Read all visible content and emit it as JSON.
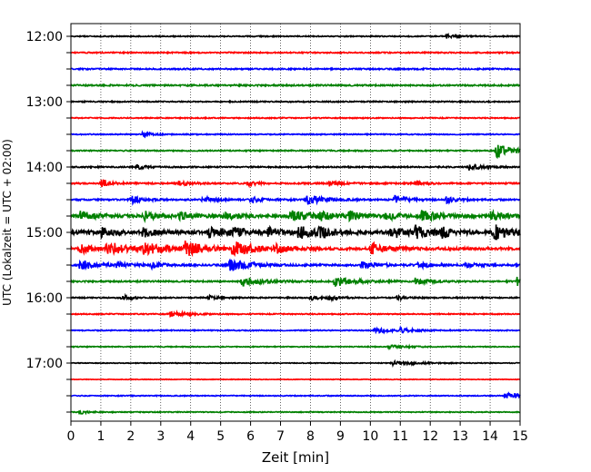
{
  "chart_data": {
    "type": "line",
    "title": "",
    "xlabel": "Zeit  [min]",
    "ylabel": "UTC (Lokalzeit = UTC + 02:00)",
    "xlim": [
      0,
      15
    ],
    "x_ticks": [
      "0",
      "1",
      "2",
      "3",
      "4",
      "5",
      "6",
      "7",
      "8",
      "9",
      "10",
      "11",
      "12",
      "13",
      "14",
      "15"
    ],
    "y_tick_labels": [
      "12:00",
      "13:00",
      "14:00",
      "15:00",
      "16:00",
      "17:00"
    ],
    "grid": "vertical dotted",
    "trace_minutes": 15,
    "colors": [
      "#000000",
      "#ff0000",
      "#0000ff",
      "#008000"
    ],
    "series": [
      {
        "start": "12:00",
        "color": "#000000",
        "noise": 0.35,
        "events": [
          {
            "t": 12.55,
            "a": 1.6,
            "d": 0.3
          }
        ]
      },
      {
        "start": "12:15",
        "color": "#ff0000",
        "noise": 0.4,
        "events": []
      },
      {
        "start": "12:30",
        "color": "#0000ff",
        "noise": 0.45,
        "events": []
      },
      {
        "start": "12:45",
        "color": "#008000",
        "noise": 0.5,
        "events": []
      },
      {
        "start": "13:00",
        "color": "#000000",
        "noise": 0.4,
        "events": []
      },
      {
        "start": "13:15",
        "color": "#ff0000",
        "noise": 0.35,
        "events": []
      },
      {
        "start": "13:30",
        "color": "#0000ff",
        "noise": 0.35,
        "events": [
          {
            "t": 2.4,
            "a": 2.0,
            "d": 0.25
          }
        ]
      },
      {
        "start": "13:45",
        "color": "#008000",
        "noise": 0.4,
        "events": [
          {
            "t": 14.2,
            "a": 4.5,
            "d": 0.6
          }
        ]
      },
      {
        "start": "14:00",
        "color": "#000000",
        "noise": 0.45,
        "events": [
          {
            "t": 2.2,
            "a": 1.5,
            "d": 0.3
          },
          {
            "t": 13.3,
            "a": 2.0,
            "d": 0.4
          }
        ]
      },
      {
        "start": "14:15",
        "color": "#ff0000",
        "noise": 0.5,
        "events": [
          {
            "t": 1.0,
            "a": 2.5,
            "d": 0.3
          },
          {
            "t": 3.6,
            "a": 2.0,
            "d": 0.3
          },
          {
            "t": 5.9,
            "a": 2.0,
            "d": 0.3
          },
          {
            "t": 8.6,
            "a": 1.8,
            "d": 0.3
          },
          {
            "t": 11.5,
            "a": 1.5,
            "d": 0.3
          }
        ]
      },
      {
        "start": "14:30",
        "color": "#0000ff",
        "noise": 0.5,
        "events": [
          {
            "t": 2.0,
            "a": 2.5,
            "d": 0.4
          },
          {
            "t": 4.4,
            "a": 1.8,
            "d": 0.4
          },
          {
            "t": 6.0,
            "a": 1.8,
            "d": 0.4
          },
          {
            "t": 7.9,
            "a": 3.5,
            "d": 0.5
          },
          {
            "t": 10.8,
            "a": 2.5,
            "d": 0.4
          },
          {
            "t": 12.5,
            "a": 2.5,
            "d": 0.3
          }
        ]
      },
      {
        "start": "14:45",
        "color": "#008000",
        "noise": 0.9,
        "events": [
          {
            "t": 0.3,
            "a": 3.0,
            "d": 0.5
          },
          {
            "t": 2.4,
            "a": 3.5,
            "d": 0.4
          },
          {
            "t": 3.6,
            "a": 2.5,
            "d": 0.4
          },
          {
            "t": 5.1,
            "a": 2.5,
            "d": 0.4
          },
          {
            "t": 7.3,
            "a": 4.0,
            "d": 0.6
          },
          {
            "t": 8.3,
            "a": 2.5,
            "d": 0.4
          },
          {
            "t": 9.3,
            "a": 3.0,
            "d": 0.4
          },
          {
            "t": 10.5,
            "a": 2.5,
            "d": 0.4
          },
          {
            "t": 11.7,
            "a": 3.5,
            "d": 0.5
          },
          {
            "t": 14.0,
            "a": 3.0,
            "d": 0.5
          }
        ]
      },
      {
        "start": "15:00",
        "color": "#000000",
        "noise": 1.3,
        "events": [
          {
            "t": 1.0,
            "a": 3.0,
            "d": 0.3
          },
          {
            "t": 2.4,
            "a": 3.0,
            "d": 0.3
          },
          {
            "t": 4.6,
            "a": 3.5,
            "d": 0.4
          },
          {
            "t": 5.3,
            "a": 4.0,
            "d": 0.4
          },
          {
            "t": 6.6,
            "a": 3.0,
            "d": 0.3
          },
          {
            "t": 7.6,
            "a": 4.5,
            "d": 0.4
          },
          {
            "t": 8.3,
            "a": 3.5,
            "d": 0.3
          },
          {
            "t": 10.7,
            "a": 4.0,
            "d": 0.4
          },
          {
            "t": 11.5,
            "a": 4.0,
            "d": 0.4
          },
          {
            "t": 12.4,
            "a": 3.0,
            "d": 0.3
          },
          {
            "t": 14.1,
            "a": 5.0,
            "d": 0.5
          }
        ]
      },
      {
        "start": "15:15",
        "color": "#ff0000",
        "noise": 0.8,
        "events": [
          {
            "t": 0.3,
            "a": 3.0,
            "d": 0.5
          },
          {
            "t": 1.2,
            "a": 4.5,
            "d": 0.6
          },
          {
            "t": 2.4,
            "a": 4.5,
            "d": 0.6
          },
          {
            "t": 3.8,
            "a": 5.0,
            "d": 0.6
          },
          {
            "t": 5.4,
            "a": 5.0,
            "d": 0.7
          },
          {
            "t": 6.8,
            "a": 2.5,
            "d": 0.4
          },
          {
            "t": 10.0,
            "a": 4.0,
            "d": 0.5
          }
        ]
      },
      {
        "start": "15:30",
        "color": "#0000ff",
        "noise": 0.6,
        "events": [
          {
            "t": 0.3,
            "a": 3.5,
            "d": 0.5
          },
          {
            "t": 1.5,
            "a": 1.8,
            "d": 0.4
          },
          {
            "t": 2.7,
            "a": 1.8,
            "d": 0.4
          },
          {
            "t": 5.3,
            "a": 4.0,
            "d": 0.6
          },
          {
            "t": 9.7,
            "a": 2.0,
            "d": 0.5
          },
          {
            "t": 11.6,
            "a": 2.0,
            "d": 0.4
          },
          {
            "t": 13.2,
            "a": 1.5,
            "d": 0.4
          }
        ]
      },
      {
        "start": "15:45",
        "color": "#008000",
        "noise": 0.5,
        "events": [
          {
            "t": 5.7,
            "a": 3.5,
            "d": 0.6
          },
          {
            "t": 8.8,
            "a": 3.5,
            "d": 0.6
          },
          {
            "t": 11.5,
            "a": 2.0,
            "d": 0.5
          },
          {
            "t": 14.9,
            "a": 3.0,
            "d": 0.4
          }
        ]
      },
      {
        "start": "16:00",
        "color": "#000000",
        "noise": 0.4,
        "events": [
          {
            "t": 1.7,
            "a": 1.8,
            "d": 0.3
          },
          {
            "t": 4.6,
            "a": 1.5,
            "d": 0.3
          },
          {
            "t": 8.0,
            "a": 1.5,
            "d": 0.3
          },
          {
            "t": 8.6,
            "a": 1.6,
            "d": 0.3
          },
          {
            "t": 10.9,
            "a": 1.5,
            "d": 0.3
          }
        ]
      },
      {
        "start": "16:15",
        "color": "#ff0000",
        "noise": 0.35,
        "events": [
          {
            "t": 3.3,
            "a": 1.6,
            "d": 0.6
          }
        ]
      },
      {
        "start": "16:30",
        "color": "#0000ff",
        "noise": 0.35,
        "events": [
          {
            "t": 10.1,
            "a": 1.8,
            "d": 0.6
          },
          {
            "t": 11.0,
            "a": 1.2,
            "d": 0.4
          }
        ]
      },
      {
        "start": "16:45",
        "color": "#008000",
        "noise": 0.3,
        "events": [
          {
            "t": 10.6,
            "a": 1.0,
            "d": 0.6
          }
        ]
      },
      {
        "start": "17:00",
        "color": "#000000",
        "noise": 0.25,
        "events": [
          {
            "t": 10.7,
            "a": 1.5,
            "d": 0.8
          }
        ]
      },
      {
        "start": "17:15",
        "color": "#ff0000",
        "noise": 0.2,
        "events": []
      },
      {
        "start": "17:30",
        "color": "#0000ff",
        "noise": 0.3,
        "events": [
          {
            "t": 14.5,
            "a": 2.0,
            "d": 0.6
          }
        ]
      },
      {
        "start": "17:45",
        "color": "#008000",
        "noise": 0.3,
        "events": [
          {
            "t": 0.3,
            "a": 1.2,
            "d": 0.3
          }
        ]
      }
    ]
  }
}
